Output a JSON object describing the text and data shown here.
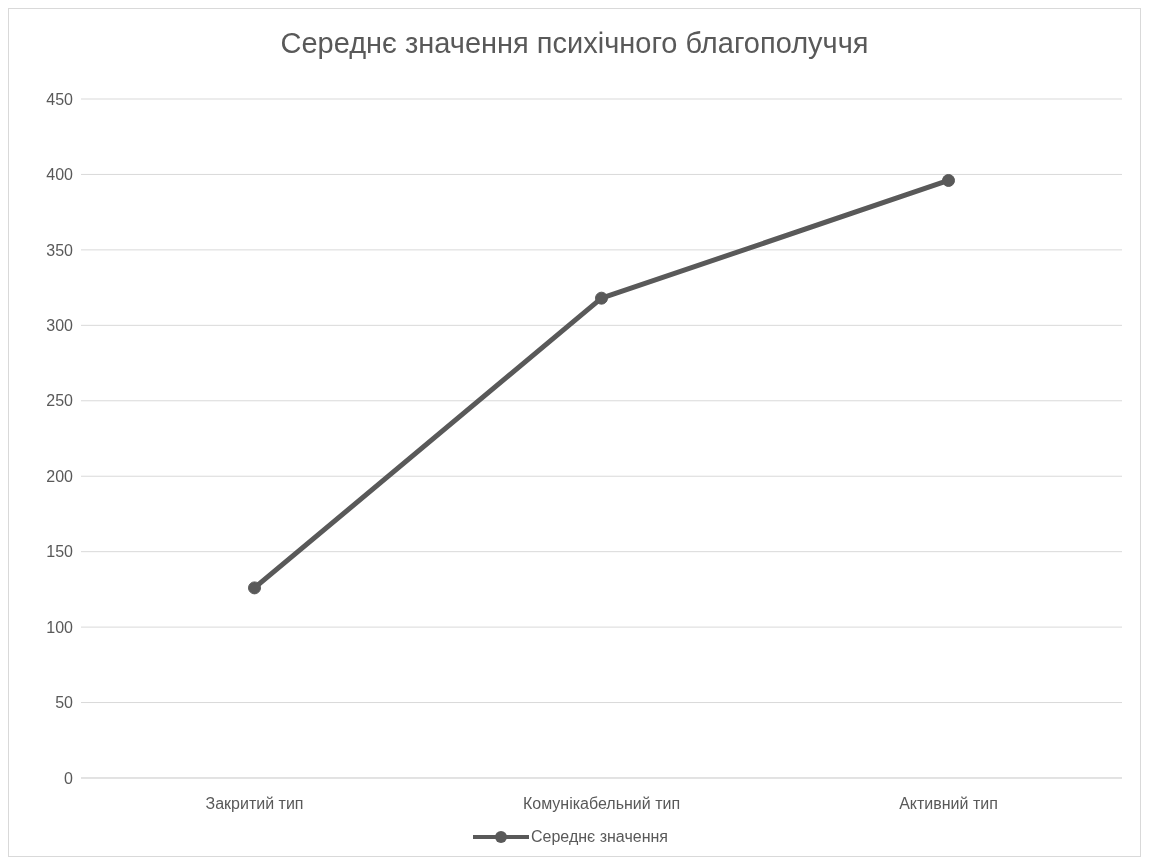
{
  "chart_data": {
    "type": "line",
    "title": "Середнє значення психічного благополуччя",
    "categories": [
      "Закритий тип",
      "Комунікабельний тип",
      "Активний тип"
    ],
    "series": [
      {
        "name": "Середнє значення",
        "color": "#595959",
        "values": [
          126,
          318,
          396
        ]
      }
    ],
    "ylim": [
      0,
      450
    ],
    "yticks": [
      0,
      50,
      100,
      150,
      200,
      250,
      300,
      350,
      400,
      450
    ],
    "grid": "y",
    "legend": "bottom",
    "marker": "circle",
    "line_style": "solid"
  }
}
